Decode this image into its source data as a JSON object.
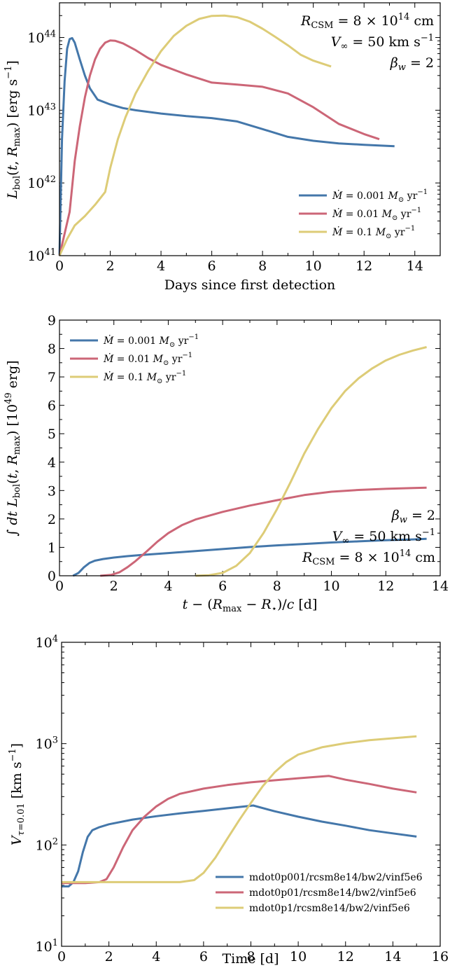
{
  "chart_data": [
    {
      "type": "line",
      "yscale": "log",
      "xlabel": "Days since first detection",
      "ylabel": "L_bol(t, R_max) [erg s^-1]",
      "xlim": [
        0,
        15
      ],
      "ylim": [
        1e+41,
        3e+44
      ],
      "xticks": [
        "0",
        "2",
        "4",
        "6",
        "8",
        "10",
        "12",
        "14"
      ],
      "yticks": [
        "10^41",
        "10^42",
        "10^43",
        "10^44"
      ],
      "legend_position": "lower-right",
      "annotations": [
        "R_CSM = 8 × 10^14 cm",
        "V_∞ = 50 km s^-1",
        "β_w = 2"
      ],
      "series": [
        {
          "name": "Ṁ = 0.001 M⊙ yr^-1",
          "color": "#4477aa",
          "x": [
            0,
            0.1,
            0.2,
            0.3,
            0.4,
            0.5,
            0.6,
            0.8,
            1.0,
            1.2,
            1.5,
            2.0,
            2.5,
            3,
            4,
            5,
            6,
            7,
            8,
            9,
            10,
            11,
            12,
            13.2
          ],
          "y": [
            1e+41,
            4e+42,
            2.5e+43,
            7e+43,
            9.5e+43,
            9.8e+43,
            8.5e+43,
            5e+43,
            3e+43,
            2e+43,
            1.4e+43,
            1.2e+43,
            1.07e+43,
            1e+43,
            9e+42,
            8.3e+42,
            7.8e+42,
            7e+42,
            5.5e+42,
            4.3e+42,
            3.8e+42,
            3.5e+42,
            3.35e+42,
            3.2e+42
          ]
        },
        {
          "name": "Ṁ = 0.01 M⊙ yr^-1",
          "color": "#cc6677",
          "x": [
            0,
            0.2,
            0.4,
            0.6,
            0.8,
            1.0,
            1.2,
            1.4,
            1.6,
            1.8,
            2.0,
            2.2,
            2.5,
            3,
            3.5,
            4,
            5,
            6,
            7,
            8,
            9,
            10,
            11,
            12,
            12.6
          ],
          "y": [
            1e+41,
            2e+41,
            4e+41,
            2e+42,
            6e+42,
            1.5e+43,
            3e+43,
            5e+43,
            7e+43,
            8.5e+43,
            9.1e+43,
            9e+43,
            8.3e+43,
            6.7e+43,
            5.2e+43,
            4.2e+43,
            3.1e+43,
            2.4e+43,
            2.25e+43,
            2.1e+43,
            1.7e+43,
            1.1e+43,
            6.5e+42,
            4.7e+42,
            4e+42
          ]
        },
        {
          "name": "Ṁ = 0.1 M⊙ yr^-1",
          "color": "#ddcc77",
          "x": [
            0,
            0.3,
            0.6,
            1.0,
            1.4,
            1.8,
            2.0,
            2.3,
            2.6,
            3.0,
            3.5,
            4.0,
            4.5,
            5.0,
            5.5,
            6.0,
            6.5,
            7.0,
            7.5,
            8.0,
            8.5,
            9.0,
            9.5,
            10.0,
            10.7
          ],
          "y": [
            1e+41,
            1.7e+41,
            2.6e+41,
            3.5e+41,
            5e+41,
            7.5e+41,
            1.6e+42,
            4e+42,
            8e+42,
            1.7e+43,
            3.5e+43,
            6.5e+43,
            1.05e+44,
            1.45e+44,
            1.8e+44,
            1.98e+44,
            2e+44,
            1.9e+44,
            1.65e+44,
            1.32e+44,
            1.02e+44,
            7.8e+43,
            5.8e+43,
            4.8e+43,
            4e+43
          ]
        }
      ]
    },
    {
      "type": "line",
      "xlabel": "t − (R_max − R⋆)/c [d]",
      "ylabel": "∫ dt L_bol(t, R_max) [10^49 erg]",
      "xlim": [
        0,
        14
      ],
      "ylim": [
        0,
        9
      ],
      "xticks": [
        "0",
        "2",
        "4",
        "6",
        "8",
        "10",
        "12",
        "14"
      ],
      "yticks": [
        "0",
        "1",
        "2",
        "3",
        "4",
        "5",
        "6",
        "7",
        "8",
        "9"
      ],
      "legend_position": "top-left",
      "annotations": [
        "β_w = 2",
        "V_∞ = 50 km s^-1",
        "R_CSM = 8 × 10^14 cm"
      ],
      "series": [
        {
          "name": "Ṁ = 0.001 M⊙ yr^-1",
          "color": "#4477aa",
          "x": [
            0.5,
            0.7,
            0.9,
            1.1,
            1.3,
            1.6,
            2,
            2.5,
            3,
            4,
            5,
            6,
            7,
            8,
            9,
            10,
            11,
            12,
            13,
            13.5
          ],
          "y": [
            0,
            0.1,
            0.3,
            0.45,
            0.53,
            0.59,
            0.64,
            0.69,
            0.73,
            0.8,
            0.87,
            0.94,
            1.01,
            1.07,
            1.12,
            1.17,
            1.21,
            1.25,
            1.28,
            1.3
          ]
        },
        {
          "name": "Ṁ = 0.01 M⊙ yr^-1",
          "color": "#cc6677",
          "x": [
            1.5,
            1.9,
            2.2,
            2.5,
            2.8,
            3.2,
            3.6,
            4.0,
            4.5,
            5,
            6,
            7,
            8,
            9,
            10,
            11,
            12,
            13,
            13.5
          ],
          "y": [
            0,
            0.03,
            0.12,
            0.3,
            0.52,
            0.85,
            1.2,
            1.5,
            1.78,
            1.98,
            2.25,
            2.47,
            2.66,
            2.84,
            2.96,
            3.02,
            3.06,
            3.09,
            3.1
          ]
        },
        {
          "name": "Ṁ = 0.1 M⊙ yr^-1",
          "color": "#ddcc77",
          "x": [
            5.0,
            5.5,
            6.0,
            6.5,
            7.0,
            7.5,
            8.0,
            8.5,
            9.0,
            9.5,
            10,
            10.5,
            11,
            11.5,
            12,
            12.5,
            13,
            13.5
          ],
          "y": [
            0,
            0.02,
            0.1,
            0.35,
            0.8,
            1.5,
            2.35,
            3.3,
            4.3,
            5.15,
            5.9,
            6.5,
            6.95,
            7.3,
            7.58,
            7.78,
            7.93,
            8.05
          ]
        }
      ]
    },
    {
      "type": "line",
      "yscale": "log",
      "xlabel": "Time [d]",
      "ylabel": "V_τ=0.01 [km s^-1]",
      "xlim": [
        0,
        16
      ],
      "ylim": [
        10,
        10000
      ],
      "xticks": [
        "0",
        "2",
        "4",
        "6",
        "8",
        "10",
        "12",
        "14",
        "16"
      ],
      "yticks": [
        "10^1",
        "10^2",
        "10^3",
        "10^4"
      ],
      "legend_position": "lower-right",
      "series": [
        {
          "name": "mdot0p001/rcsm8e14/bw2/vinf5e6",
          "color": "#4477aa",
          "x": [
            0,
            0.3,
            0.5,
            0.7,
            0.9,
            1.1,
            1.3,
            1.6,
            2,
            3,
            4,
            5,
            6,
            7,
            8.1,
            9,
            10,
            11,
            12,
            13,
            14,
            15
          ],
          "y": [
            39,
            39,
            43,
            55,
            85,
            120,
            140,
            150,
            160,
            178,
            192,
            205,
            217,
            230,
            245,
            215,
            190,
            170,
            155,
            140,
            130,
            121
          ]
        },
        {
          "name": "mdot0p01/rcsm8e14/bw2/vinf5e6",
          "color": "#cc6677",
          "x": [
            0,
            1.0,
            1.6,
            1.9,
            2.2,
            2.6,
            3.0,
            3.5,
            4,
            4.5,
            5,
            6,
            7,
            8,
            9,
            10,
            11.3,
            12,
            13,
            14,
            15
          ],
          "y": [
            42,
            42,
            43,
            46,
            60,
            95,
            140,
            190,
            240,
            285,
            320,
            360,
            390,
            415,
            435,
            455,
            480,
            440,
            400,
            360,
            330
          ]
        },
        {
          "name": "mdot0p1/rcsm8e14/bw2/vinf5e6",
          "color": "#ddcc77",
          "x": [
            0,
            2,
            4,
            5,
            5.6,
            6.0,
            6.5,
            7,
            7.5,
            8,
            8.5,
            9,
            9.5,
            10,
            11,
            12,
            13,
            14,
            15
          ],
          "y": [
            43,
            43,
            43,
            43,
            45,
            53,
            75,
            115,
            175,
            260,
            380,
            520,
            660,
            780,
            920,
            1010,
            1080,
            1130,
            1180
          ]
        }
      ]
    }
  ]
}
